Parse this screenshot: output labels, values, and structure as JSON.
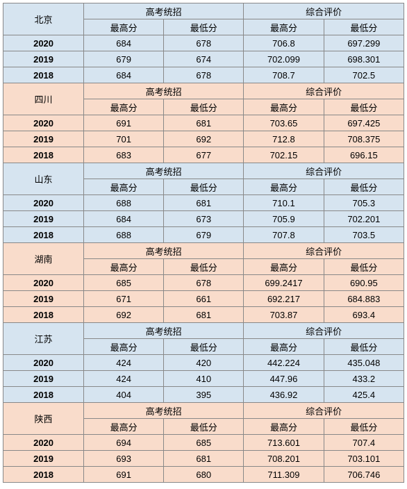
{
  "headers": {
    "col1": "高考统招",
    "col2": "综合评价",
    "max": "最高分",
    "min": "最低分"
  },
  "colors": {
    "blue": "#d6e4f0",
    "orange": "#f9dccb",
    "border": "#888888"
  },
  "groups": [
    {
      "province": "北京",
      "color": "blue",
      "rows": [
        {
          "year": "2020",
          "v": [
            "684",
            "678",
            "706.8",
            "697.299"
          ]
        },
        {
          "year": "2019",
          "v": [
            "679",
            "674",
            "702.099",
            "698.301"
          ]
        },
        {
          "year": "2018",
          "v": [
            "684",
            "678",
            "708.7",
            "702.5"
          ]
        }
      ]
    },
    {
      "province": "四川",
      "color": "orange",
      "rows": [
        {
          "year": "2020",
          "v": [
            "691",
            "681",
            "703.65",
            "697.425"
          ]
        },
        {
          "year": "2019",
          "v": [
            "701",
            "692",
            "712.8",
            "708.375"
          ]
        },
        {
          "year": "2018",
          "v": [
            "683",
            "677",
            "702.15",
            "696.15"
          ]
        }
      ]
    },
    {
      "province": "山东",
      "color": "blue",
      "rows": [
        {
          "year": "2020",
          "v": [
            "688",
            "681",
            "710.1",
            "705.3"
          ]
        },
        {
          "year": "2019",
          "v": [
            "684",
            "673",
            "705.9",
            "702.201"
          ]
        },
        {
          "year": "2018",
          "v": [
            "688",
            "679",
            "707.8",
            "703.5"
          ]
        }
      ]
    },
    {
      "province": "湖南",
      "color": "orange",
      "rows": [
        {
          "year": "2020",
          "v": [
            "685",
            "678",
            "699.2417",
            "690.95"
          ]
        },
        {
          "year": "2019",
          "v": [
            "671",
            "661",
            "692.217",
            "684.883"
          ]
        },
        {
          "year": "2018",
          "v": [
            "692",
            "681",
            "703.87",
            "693.4"
          ]
        }
      ]
    },
    {
      "province": "江苏",
      "color": "blue",
      "rows": [
        {
          "year": "2020",
          "v": [
            "424",
            "420",
            "442.224",
            "435.048"
          ]
        },
        {
          "year": "2019",
          "v": [
            "424",
            "410",
            "447.96",
            "433.2"
          ]
        },
        {
          "year": "2018",
          "v": [
            "404",
            "395",
            "436.92",
            "425.4"
          ]
        }
      ]
    },
    {
      "province": "陕西",
      "color": "orange",
      "rows": [
        {
          "year": "2020",
          "v": [
            "694",
            "685",
            "713.601",
            "707.4"
          ]
        },
        {
          "year": "2019",
          "v": [
            "693",
            "681",
            "708.201",
            "703.101"
          ]
        },
        {
          "year": "2018",
          "v": [
            "691",
            "680",
            "711.309",
            "706.746"
          ]
        }
      ]
    }
  ]
}
